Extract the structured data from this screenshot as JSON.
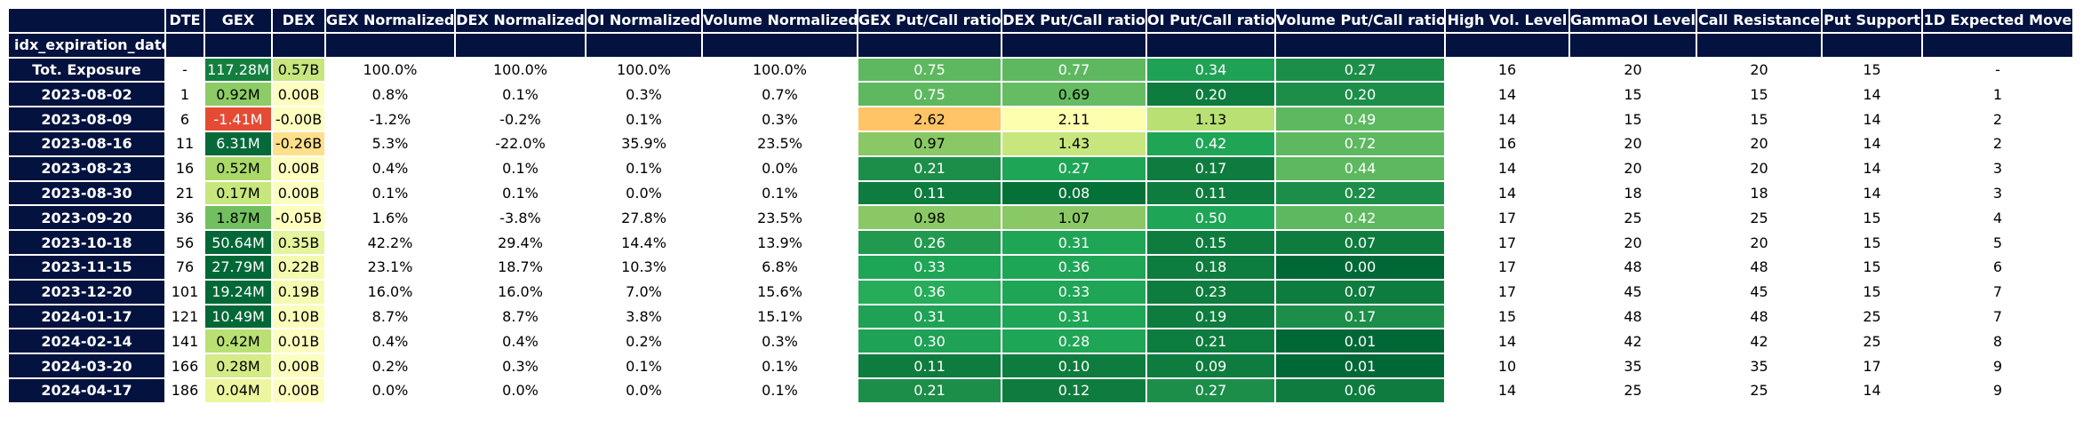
{
  "chart_data": {
    "type": "table",
    "index_name": "idx_expiration_date",
    "columns": [
      "DTE",
      "GEX",
      "DEX",
      "GEX Normalized",
      "DEX Normalized",
      "OI Normalized",
      "Volume Normalized",
      "GEX Put/Call ratio",
      "DEX Put/Call ratio",
      "OI Put/Call ratio",
      "Volume Put/Call ratio",
      "High Vol. Level",
      "GammaOI Level",
      "Call Resistance",
      "Put Support",
      "1D Expected Move"
    ],
    "rows": [
      {
        "label": "Tot. Exposure",
        "cells": [
          "-",
          "117.28M",
          "0.57B",
          "100.0%",
          "100.0%",
          "100.0%",
          "100.0%",
          "0.75",
          "0.77",
          "0.34",
          "0.27",
          "16",
          "20",
          "20",
          "15",
          "-"
        ]
      },
      {
        "label": "2023-08-02",
        "cells": [
          "1",
          "0.92M",
          "0.00B",
          "0.8%",
          "0.1%",
          "0.3%",
          "0.7%",
          "0.75",
          "0.69",
          "0.20",
          "0.20",
          "14",
          "15",
          "15",
          "14",
          "1"
        ]
      },
      {
        "label": "2023-08-09",
        "cells": [
          "6",
          "-1.41M",
          "-0.00B",
          "-1.2%",
          "-0.2%",
          "0.1%",
          "0.3%",
          "2.62",
          "2.11",
          "1.13",
          "0.49",
          "14",
          "15",
          "15",
          "14",
          "2"
        ]
      },
      {
        "label": "2023-08-16",
        "cells": [
          "11",
          "6.31M",
          "-0.26B",
          "5.3%",
          "-22.0%",
          "35.9%",
          "23.5%",
          "0.97",
          "1.43",
          "0.42",
          "0.72",
          "16",
          "20",
          "20",
          "14",
          "2"
        ]
      },
      {
        "label": "2023-08-23",
        "cells": [
          "16",
          "0.52M",
          "0.00B",
          "0.4%",
          "0.1%",
          "0.1%",
          "0.0%",
          "0.21",
          "0.27",
          "0.17",
          "0.44",
          "14",
          "20",
          "20",
          "14",
          "3"
        ]
      },
      {
        "label": "2023-08-30",
        "cells": [
          "21",
          "0.17M",
          "0.00B",
          "0.1%",
          "0.1%",
          "0.0%",
          "0.1%",
          "0.11",
          "0.08",
          "0.11",
          "0.22",
          "14",
          "18",
          "18",
          "14",
          "3"
        ]
      },
      {
        "label": "2023-09-20",
        "cells": [
          "36",
          "1.87M",
          "-0.05B",
          "1.6%",
          "-3.8%",
          "27.8%",
          "23.5%",
          "0.98",
          "1.07",
          "0.50",
          "0.42",
          "17",
          "25",
          "25",
          "15",
          "4"
        ]
      },
      {
        "label": "2023-10-18",
        "cells": [
          "56",
          "50.64M",
          "0.35B",
          "42.2%",
          "29.4%",
          "14.4%",
          "13.9%",
          "0.26",
          "0.31",
          "0.15",
          "0.07",
          "17",
          "20",
          "20",
          "15",
          "5"
        ]
      },
      {
        "label": "2023-11-15",
        "cells": [
          "76",
          "27.79M",
          "0.22B",
          "23.1%",
          "18.7%",
          "10.3%",
          "6.8%",
          "0.33",
          "0.36",
          "0.18",
          "0.00",
          "17",
          "48",
          "48",
          "15",
          "6"
        ]
      },
      {
        "label": "2023-12-20",
        "cells": [
          "101",
          "19.24M",
          "0.19B",
          "16.0%",
          "16.0%",
          "7.0%",
          "15.6%",
          "0.36",
          "0.33",
          "0.23",
          "0.07",
          "17",
          "45",
          "45",
          "15",
          "7"
        ]
      },
      {
        "label": "2024-01-17",
        "cells": [
          "121",
          "10.49M",
          "0.10B",
          "8.7%",
          "8.7%",
          "3.8%",
          "15.1%",
          "0.31",
          "0.31",
          "0.19",
          "0.17",
          "15",
          "48",
          "48",
          "25",
          "7"
        ]
      },
      {
        "label": "2024-02-14",
        "cells": [
          "141",
          "0.42M",
          "0.01B",
          "0.4%",
          "0.4%",
          "0.2%",
          "0.3%",
          "0.30",
          "0.28",
          "0.21",
          "0.01",
          "14",
          "42",
          "42",
          "25",
          "8"
        ]
      },
      {
        "label": "2024-03-20",
        "cells": [
          "166",
          "0.28M",
          "0.00B",
          "0.2%",
          "0.3%",
          "0.1%",
          "0.1%",
          "0.11",
          "0.10",
          "0.09",
          "0.01",
          "10",
          "35",
          "35",
          "17",
          "9"
        ]
      },
      {
        "label": "2024-04-17",
        "cells": [
          "186",
          "0.04M",
          "0.00B",
          "0.0%",
          "0.0%",
          "0.0%",
          "0.1%",
          "0.21",
          "0.12",
          "0.27",
          "0.06",
          "14",
          "25",
          "25",
          "14",
          "9"
        ]
      }
    ],
    "cell_colors": {
      "GEX": [
        "#137f3f",
        "#8dcb66",
        "#e54b34",
        "#06693a",
        "#aad869",
        "#c8e67e",
        "#72bf5f",
        "#006837",
        "#006837",
        "#006837",
        "#006837",
        "#b9e073",
        "#d4eb88",
        "#ebf69f"
      ],
      "DEX": [
        "#c7e67e",
        "#fdfdbf",
        "#fdfdbf",
        "#fedf8b",
        "#fdfdbf",
        "#fdfdbf",
        "#fefebd",
        "#e6f49d",
        "#f4fab0",
        "#f5fab1",
        "#fbfdbb",
        "#fdfdbf",
        "#fdfdbf",
        "#fdfdbf"
      ],
      "GEX Put/Call ratio": [
        "#5eb860",
        "#5eb860",
        "#fec466",
        "#8ac865",
        "#1c8e49",
        "#0e7c3e",
        "#8ac865",
        "#219a50",
        "#1fa556",
        "#27ac5a",
        "#1fa256",
        "#1fa256",
        "#0e7c3e",
        "#1c8e49"
      ],
      "DEX Put/Call ratio": [
        "#5eb860",
        "#66bc62",
        "#fefeaf",
        "#c8e67e",
        "#1fa556",
        "#047138",
        "#8ac865",
        "#1fa556",
        "#1fa556",
        "#1fa556",
        "#1fa556",
        "#1fa556",
        "#0e7c3e",
        "#0e7c3e"
      ],
      "OI Put/Call ratio": [
        "#1fa256",
        "#0e7c3e",
        "#b8e073",
        "#1fa556",
        "#0e7c3e",
        "#0e7c3e",
        "#1fa556",
        "#0e7c3e",
        "#0e7c3e",
        "#0e7c3e",
        "#0e7c3e",
        "#0e7c3e",
        "#0e7c3e",
        "#1c8e49"
      ],
      "Volume Put/Call ratio": [
        "#1c8e49",
        "#1c8e49",
        "#5eb860",
        "#5eb860",
        "#5eb860",
        "#1c8e49",
        "#5eb860",
        "#0e7c3e",
        "#006837",
        "#0e7c3e",
        "#1c8e49",
        "#006837",
        "#006837",
        "#0e7c3e"
      ]
    }
  }
}
